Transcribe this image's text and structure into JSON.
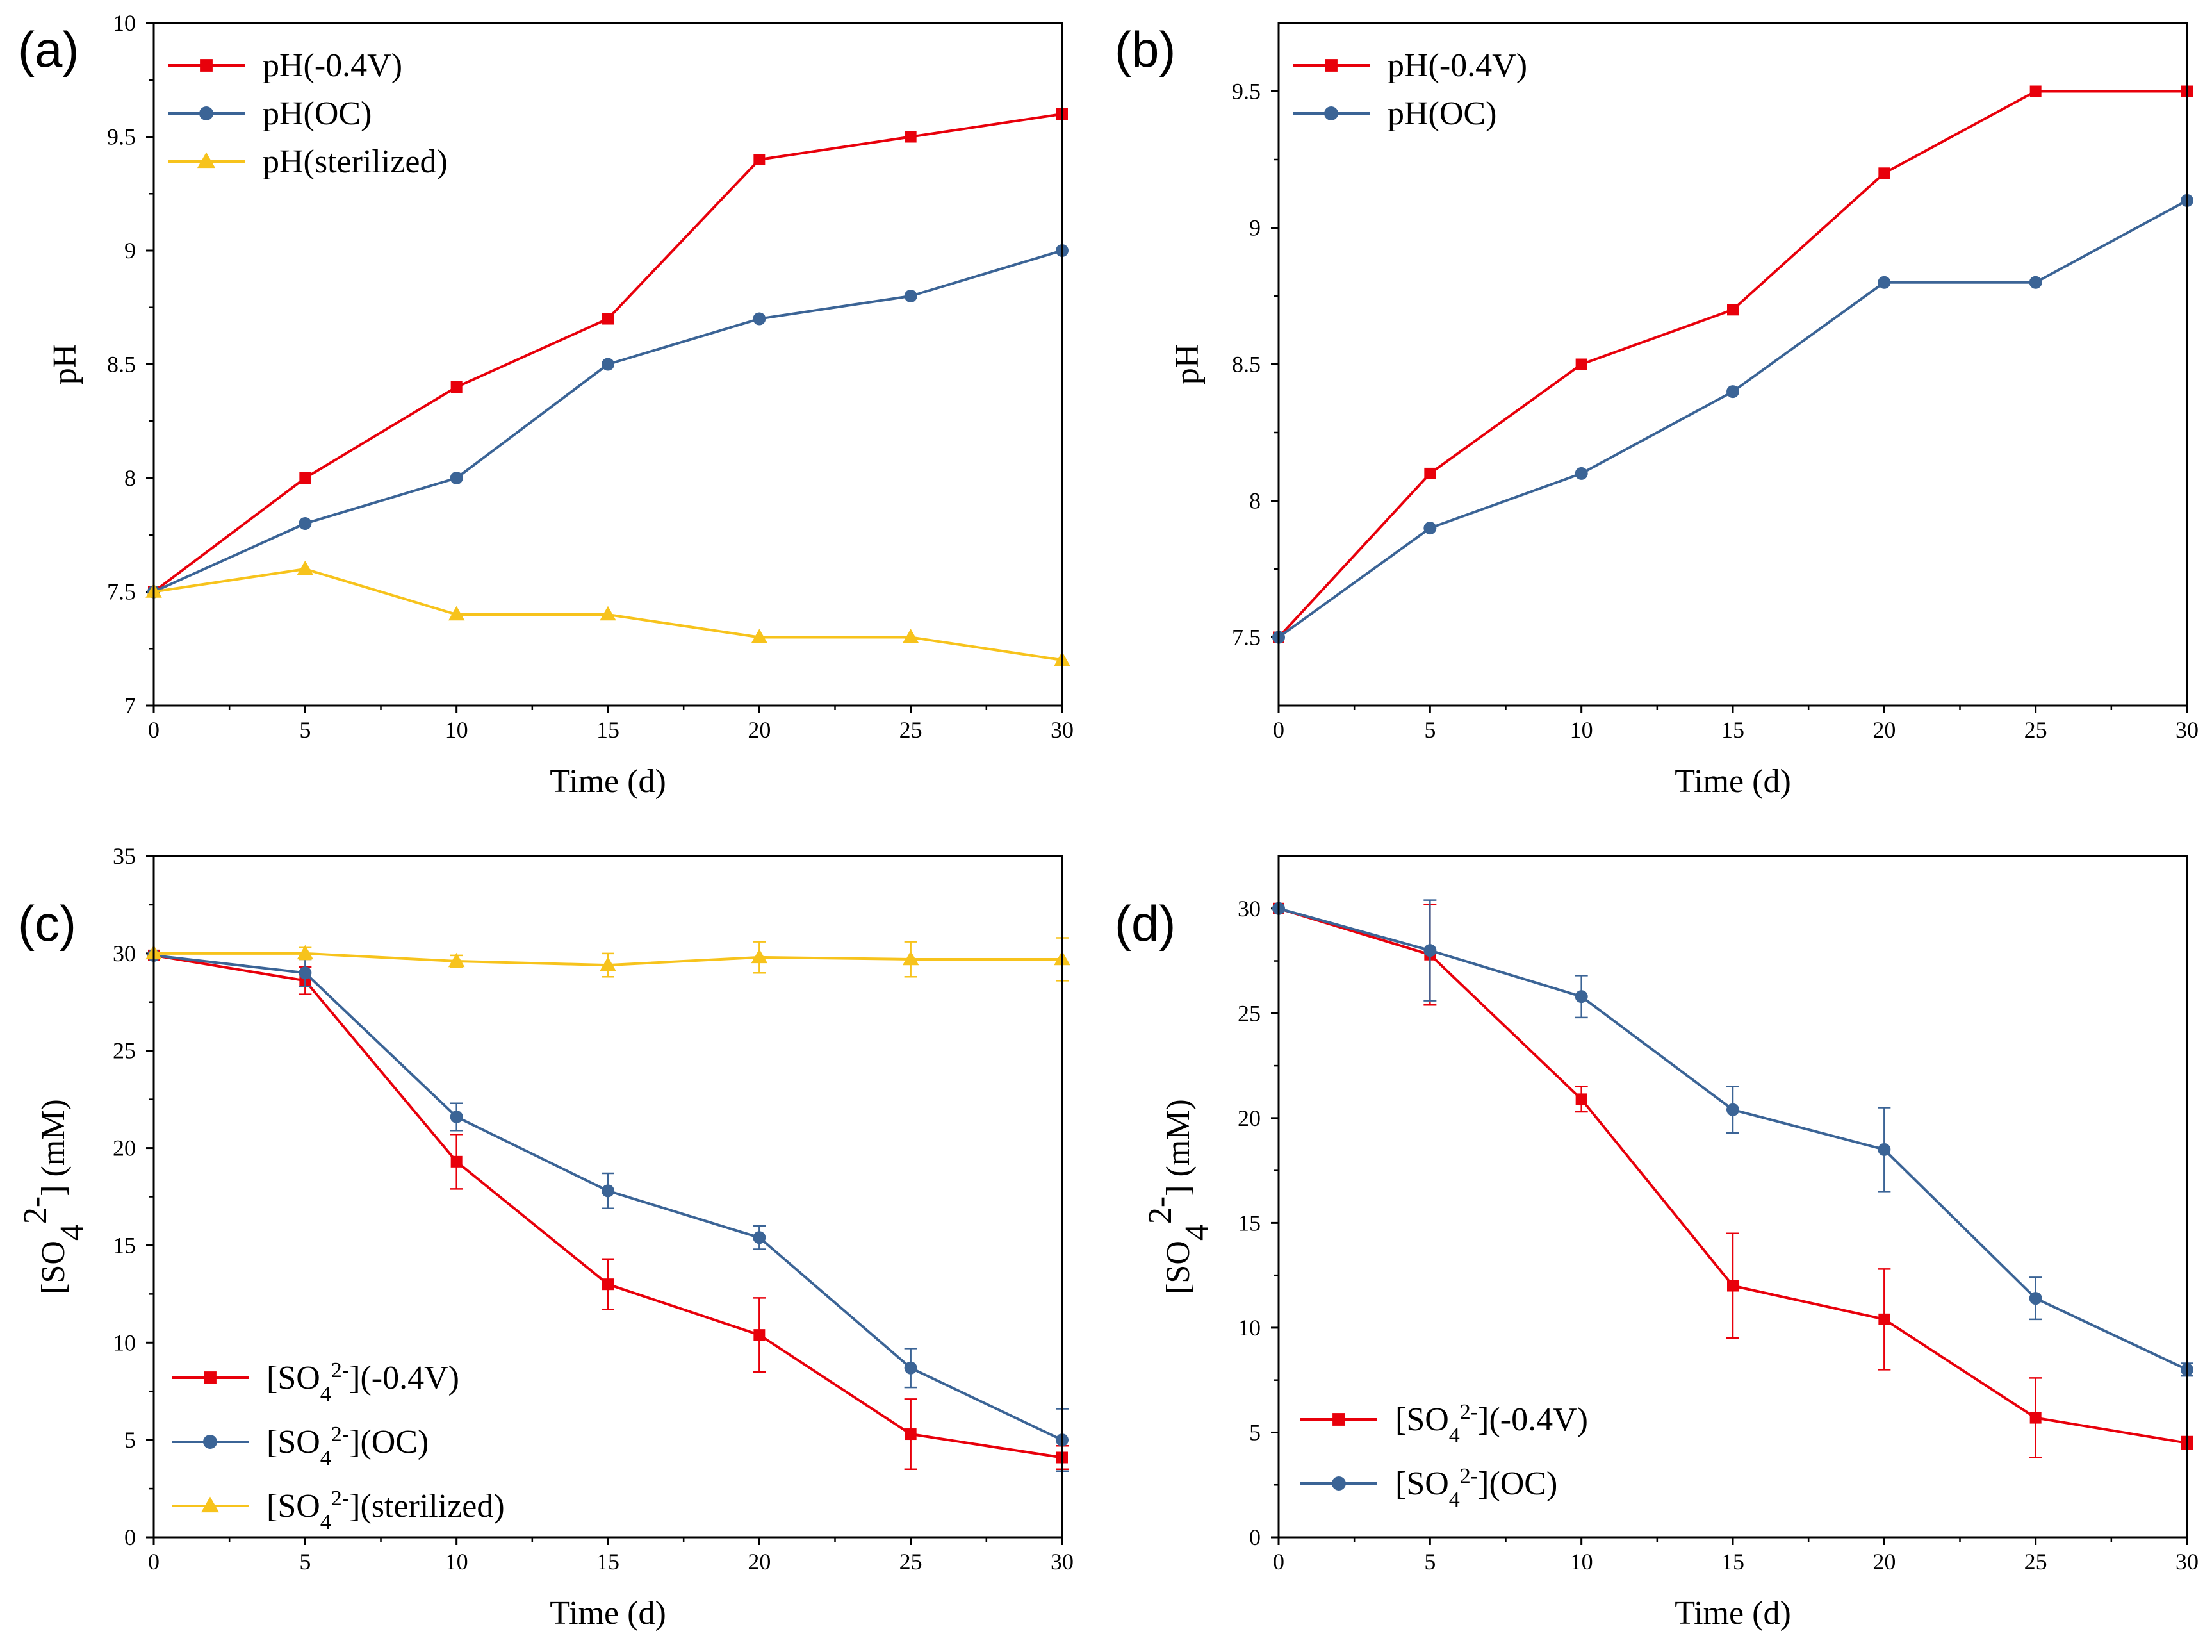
{
  "chart_data": [
    {
      "panel": "(a)",
      "type": "line",
      "xlabel": "Time (d)",
      "ylabel": "pH",
      "xlim": [
        0,
        30
      ],
      "ylim": [
        7,
        10
      ],
      "xticks": [
        0,
        5,
        10,
        15,
        20,
        25,
        30
      ],
      "yticks": [
        7,
        7.5,
        8,
        8.5,
        9,
        9.5,
        10
      ],
      "ytick_labels": [
        "7",
        "7.5",
        "8",
        "8.5",
        "9",
        "9.5",
        "10"
      ],
      "x": [
        0,
        5,
        10,
        15,
        20,
        25,
        30
      ],
      "legend_position": "top-left",
      "series": [
        {
          "name": "pH(-0.4V)",
          "label_parts": [
            "pH(-0.4V)"
          ],
          "color": "#e8000b",
          "marker": "square",
          "values": [
            7.5,
            8.0,
            8.4,
            8.7,
            9.4,
            9.5,
            9.6
          ]
        },
        {
          "name": "pH(OC)",
          "label_parts": [
            "pH(OC)"
          ],
          "color": "#3b6496",
          "marker": "circle",
          "values": [
            7.5,
            7.8,
            8.0,
            8.5,
            8.7,
            8.8,
            9.0
          ]
        },
        {
          "name": "pH(sterilized)",
          "label_parts": [
            "pH(sterilized)"
          ],
          "color": "#f7c31c",
          "marker": "triangle",
          "values": [
            7.5,
            7.6,
            7.4,
            7.4,
            7.3,
            7.3,
            7.2
          ]
        }
      ]
    },
    {
      "panel": "(b)",
      "type": "line",
      "xlabel": "Time (d)",
      "ylabel": "pH",
      "xlim": [
        0,
        30
      ],
      "ylim": [
        7.25,
        9.75
      ],
      "xticks": [
        0,
        5,
        10,
        15,
        20,
        25,
        30
      ],
      "yticks": [
        7.5,
        8,
        8.5,
        9,
        9.5
      ],
      "ytick_labels": [
        "7.5",
        "8",
        "8.5",
        "9",
        "9.5"
      ],
      "x": [
        0,
        5,
        10,
        15,
        20,
        25,
        30
      ],
      "legend_position": "top-left",
      "series": [
        {
          "name": "pH(-0.4V)",
          "label_parts": [
            "pH(-0.4V)"
          ],
          "color": "#e8000b",
          "marker": "square",
          "values": [
            7.5,
            8.1,
            8.5,
            8.7,
            9.2,
            9.5,
            9.5
          ]
        },
        {
          "name": "pH(OC)",
          "label_parts": [
            "pH(OC)"
          ],
          "color": "#3b6496",
          "marker": "circle",
          "values": [
            7.5,
            7.9,
            8.1,
            8.4,
            8.8,
            8.8,
            9.1
          ]
        }
      ]
    },
    {
      "panel": "(c)",
      "type": "line",
      "xlabel": "Time (d)",
      "ylabel_parts": [
        "[SO",
        "4",
        "2-",
        "] (mM)"
      ],
      "xlim": [
        0,
        30
      ],
      "ylim": [
        0,
        35
      ],
      "xticks": [
        0,
        5,
        10,
        15,
        20,
        25,
        30
      ],
      "yticks": [
        0,
        5,
        10,
        15,
        20,
        25,
        30,
        35
      ],
      "ytick_labels": [
        "0",
        "5",
        "10",
        "15",
        "20",
        "25",
        "30",
        "35"
      ],
      "x": [
        0,
        5,
        10,
        15,
        20,
        25,
        30
      ],
      "legend_position": "bottom-left",
      "series": [
        {
          "name": "[SO42-](-0.4V)",
          "label_parts": [
            "[SO",
            "4",
            "2-",
            "](-0.4V)"
          ],
          "color": "#e8000b",
          "marker": "square",
          "values": [
            29.9,
            28.6,
            19.3,
            13.0,
            10.4,
            5.3,
            4.1
          ],
          "errors": [
            0,
            0.7,
            1.4,
            1.3,
            1.9,
            1.8,
            0.6
          ]
        },
        {
          "name": "[SO42-](OC)",
          "label_parts": [
            "[SO",
            "4",
            "2-",
            "](OC)"
          ],
          "color": "#3b6496",
          "marker": "circle",
          "values": [
            29.9,
            29.0,
            21.6,
            17.8,
            15.4,
            8.7,
            5.0
          ],
          "errors": [
            0,
            0.7,
            0.7,
            0.9,
            0.6,
            1.0,
            1.6
          ]
        },
        {
          "name": "[SO42-](sterilized)",
          "label_parts": [
            "[SO",
            "4",
            "2-",
            "](sterilized)"
          ],
          "color": "#f7c31c",
          "marker": "triangle",
          "values": [
            30.0,
            30.0,
            29.6,
            29.4,
            29.8,
            29.7,
            29.7
          ],
          "errors": [
            0,
            0.3,
            0.3,
            0.6,
            0.8,
            0.9,
            1.1
          ]
        }
      ]
    },
    {
      "panel": "(d)",
      "type": "line",
      "xlabel": "Time (d)",
      "ylabel_parts": [
        "[SO",
        "4",
        "2-",
        "] (mM)"
      ],
      "xlim": [
        0,
        30
      ],
      "ylim": [
        0,
        32.5
      ],
      "xticks": [
        0,
        5,
        10,
        15,
        20,
        25,
        30
      ],
      "yticks": [
        0,
        5,
        10,
        15,
        20,
        25,
        30
      ],
      "ytick_labels": [
        "0",
        "5",
        "10",
        "15",
        "20",
        "25",
        "30"
      ],
      "x": [
        0,
        5,
        10,
        15,
        20,
        25,
        30
      ],
      "legend_position": "bottom-left",
      "series": [
        {
          "name": "[SO42-](-0.4V)",
          "label_parts": [
            "[SO",
            "4",
            "2-",
            "](-0.4V)"
          ],
          "color": "#e8000b",
          "marker": "square",
          "values": [
            30.0,
            27.8,
            20.9,
            12.0,
            10.4,
            5.7,
            4.5
          ],
          "errors": [
            0,
            2.4,
            0.6,
            2.5,
            2.4,
            1.9,
            0.3
          ]
        },
        {
          "name": "[SO42-](OC)",
          "label_parts": [
            "[SO",
            "4",
            "2-",
            "](OC)"
          ],
          "color": "#3b6496",
          "marker": "circle",
          "values": [
            30.0,
            28.0,
            25.8,
            20.4,
            18.5,
            11.4,
            8.0
          ],
          "errors": [
            0,
            2.4,
            1.0,
            1.1,
            2.0,
            1.0,
            0.3
          ]
        }
      ]
    }
  ]
}
